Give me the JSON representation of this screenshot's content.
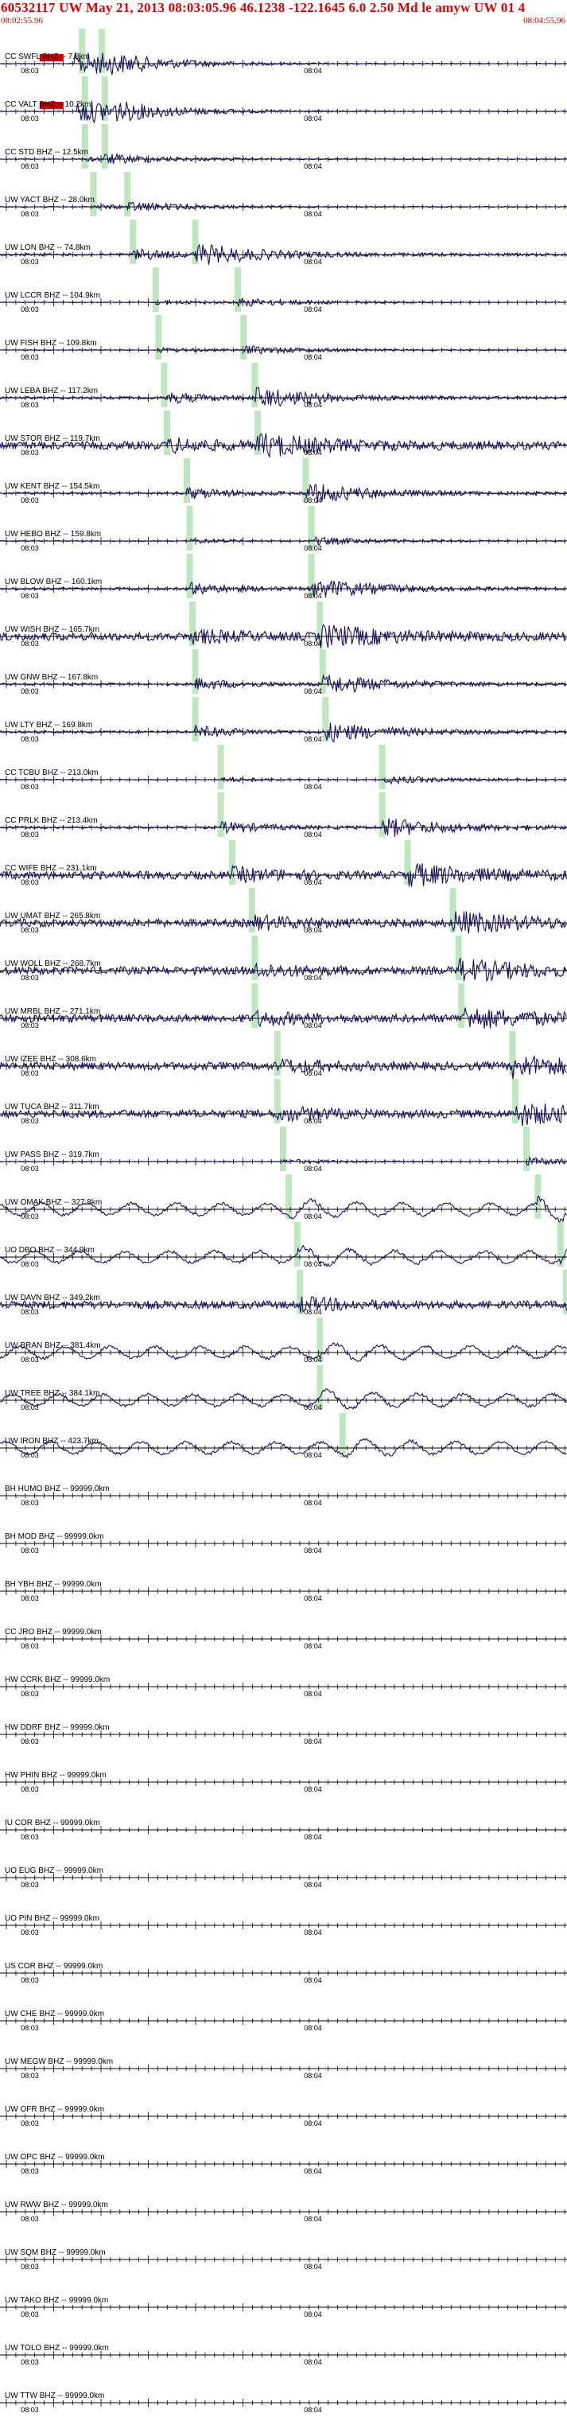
{
  "header": {
    "title": "60532117 UW May 21, 2013 08:03:05.96   46.1238  -122.1645  6.0 2.50 Md le amyw UW 01   4",
    "start_time": "08:02:55.96",
    "end_time": "08:04:55.96"
  },
  "tick_labels": [
    "08:03",
    "08:04"
  ],
  "colors": {
    "header_text": "#e00000",
    "trace": "#1a1060",
    "pick_marker": "#b8e4b8",
    "clip_marker": "#cc0000",
    "label_text": "#000000"
  },
  "traces": [
    {
      "label": "CC SWFL BHZ -- 7.8km",
      "activity": "clipped",
      "p": 0.29,
      "s": 0.36
    },
    {
      "label": "CC VALT BHZ -- 10.2km",
      "activity": "clipped",
      "p": 0.3,
      "s": 0.37
    },
    {
      "label": "CC STD BHZ -- 12.5km",
      "activity": "flat",
      "p": 0.3,
      "s": 0.37
    },
    {
      "label": "UW YACT BHZ -- 28.0km",
      "activity": "flat",
      "p": 0.33,
      "s": 0.45
    },
    {
      "label": "UW LON BHZ -- 74.8km",
      "activity": "event",
      "p": 0.47,
      "s": 0.69
    },
    {
      "label": "UW LCCR BHZ -- 104.9km",
      "activity": "flat",
      "p": 0.55,
      "s": 0.84
    },
    {
      "label": "UW FISH BHZ -- 109.8km",
      "activity": "flat",
      "p": 0.56,
      "s": 0.86
    },
    {
      "label": "UW LEBA BHZ -- 117.2km",
      "activity": "event",
      "p": 0.58,
      "s": 0.9
    },
    {
      "label": "UW STOR BHZ -- 119.7km",
      "activity": "noisy",
      "p": 0.59,
      "s": 0.91
    },
    {
      "label": "UW KENT BHZ -- 154.5km",
      "activity": "event",
      "p": 0.66,
      "s": 1.08
    },
    {
      "label": "UW HEBO BHZ -- 159.8km",
      "activity": "flat",
      "p": 0.67,
      "s": 1.1
    },
    {
      "label": "UW BLOW BHZ -- 160.1km",
      "activity": "event",
      "p": 0.67,
      "s": 1.1
    },
    {
      "label": "UW WISH BHZ -- 165.7km",
      "activity": "noisy",
      "p": 0.68,
      "s": 1.13
    },
    {
      "label": "UW GNW BHZ -- 167.8km",
      "activity": "event",
      "p": 0.69,
      "s": 1.14
    },
    {
      "label": "UW LTY BHZ -- 169.8km",
      "activity": "event",
      "p": 0.69,
      "s": 1.15
    },
    {
      "label": "CC TCBU BHZ -- 213.0km",
      "activity": "flat",
      "p": 0.78,
      "s": 1.35
    },
    {
      "label": "CC PRLK BHZ -- 213.4km",
      "activity": "event",
      "p": 0.78,
      "s": 1.35
    },
    {
      "label": "CC WIFE BHZ -- 231.1km",
      "activity": "noisy",
      "p": 0.82,
      "s": 1.44
    },
    {
      "label": "UW UMAT BHZ -- 265.8km",
      "activity": "noisy",
      "p": 0.89,
      "s": 1.6
    },
    {
      "label": "UW WOLL BHZ -- 268.7km",
      "activity": "noisy",
      "p": 0.9,
      "s": 1.62
    },
    {
      "label": "UW MRBL BHZ -- 271.1km",
      "activity": "noisy",
      "p": 0.9,
      "s": 1.63
    },
    {
      "label": "UW IZEE BHZ -- 308.6km",
      "activity": "noisy",
      "p": 0.98,
      "s": 1.81
    },
    {
      "label": "UW TUCA BHZ -- 311.7km",
      "activity": "noisy",
      "p": 0.98,
      "s": 1.82
    },
    {
      "label": "UW PASS BHZ -- 319.7km",
      "activity": "flat",
      "p": 1.0,
      "s": 1.86
    },
    {
      "label": "UW OMAK BHZ -- 327.8km",
      "activity": "wavy",
      "p": 1.02,
      "s": 1.9
    },
    {
      "label": "UO DBO BHZ -- 344.9km",
      "activity": "wavy",
      "p": 1.05,
      "s": 1.98
    },
    {
      "label": "UW DAVN BHZ -- 349.2km",
      "activity": "noisy",
      "p": 1.06,
      "s": 2.0
    },
    {
      "label": "UW BRAN BHZ -- 381.4km",
      "activity": "wavy",
      "p": 1.13,
      "s": 2.15
    },
    {
      "label": "UW TREE BHZ -- 384.1km",
      "activity": "wavy",
      "p": 1.13,
      "s": 2.16
    },
    {
      "label": "UW IRON BHZ -- 423.7km",
      "activity": "wavy",
      "p": 1.21,
      "s": 2.34
    },
    {
      "label": "BH HUMO BHZ -- 99999.0km",
      "activity": "empty"
    },
    {
      "label": "BH MOD BHZ -- 99999.0km",
      "activity": "empty"
    },
    {
      "label": "BH YBH BHZ -- 99999.0km",
      "activity": "empty"
    },
    {
      "label": "CC JRO BHZ -- 99999.0km",
      "activity": "empty"
    },
    {
      "label": "HW CCRK BHZ -- 99999.0km",
      "activity": "empty"
    },
    {
      "label": "HW DDRF BHZ -- 99999.0km",
      "activity": "empty"
    },
    {
      "label": "HW PHIN BHZ -- 99999.0km",
      "activity": "empty"
    },
    {
      "label": "IU COR BHZ -- 99999.0km",
      "activity": "empty"
    },
    {
      "label": "UO EUG BHZ -- 99999.0km",
      "activity": "empty"
    },
    {
      "label": "UO PIN BHZ -- 99999.0km",
      "activity": "empty"
    },
    {
      "label": "US COR BHZ -- 99999.0km",
      "activity": "empty"
    },
    {
      "label": "UW CHE BHZ -- 99999.0km",
      "activity": "empty"
    },
    {
      "label": "UW MEGW BHZ -- 99999.0km",
      "activity": "empty"
    },
    {
      "label": "UW OFR BHZ -- 99999.0km",
      "activity": "empty"
    },
    {
      "label": "UW OPC BHZ -- 99999.0km",
      "activity": "empty"
    },
    {
      "label": "UW RWW BHZ -- 99999.0km",
      "activity": "empty"
    },
    {
      "label": "UW SQM BHZ -- 99999.0km",
      "activity": "empty"
    },
    {
      "label": "UW TAKO BHZ -- 99999.0km",
      "activity": "empty"
    },
    {
      "label": "UW TOLO BHZ -- 99999.0km",
      "activity": "empty"
    },
    {
      "label": "UW TTW BHZ -- 99999.0km",
      "activity": "empty"
    }
  ]
}
